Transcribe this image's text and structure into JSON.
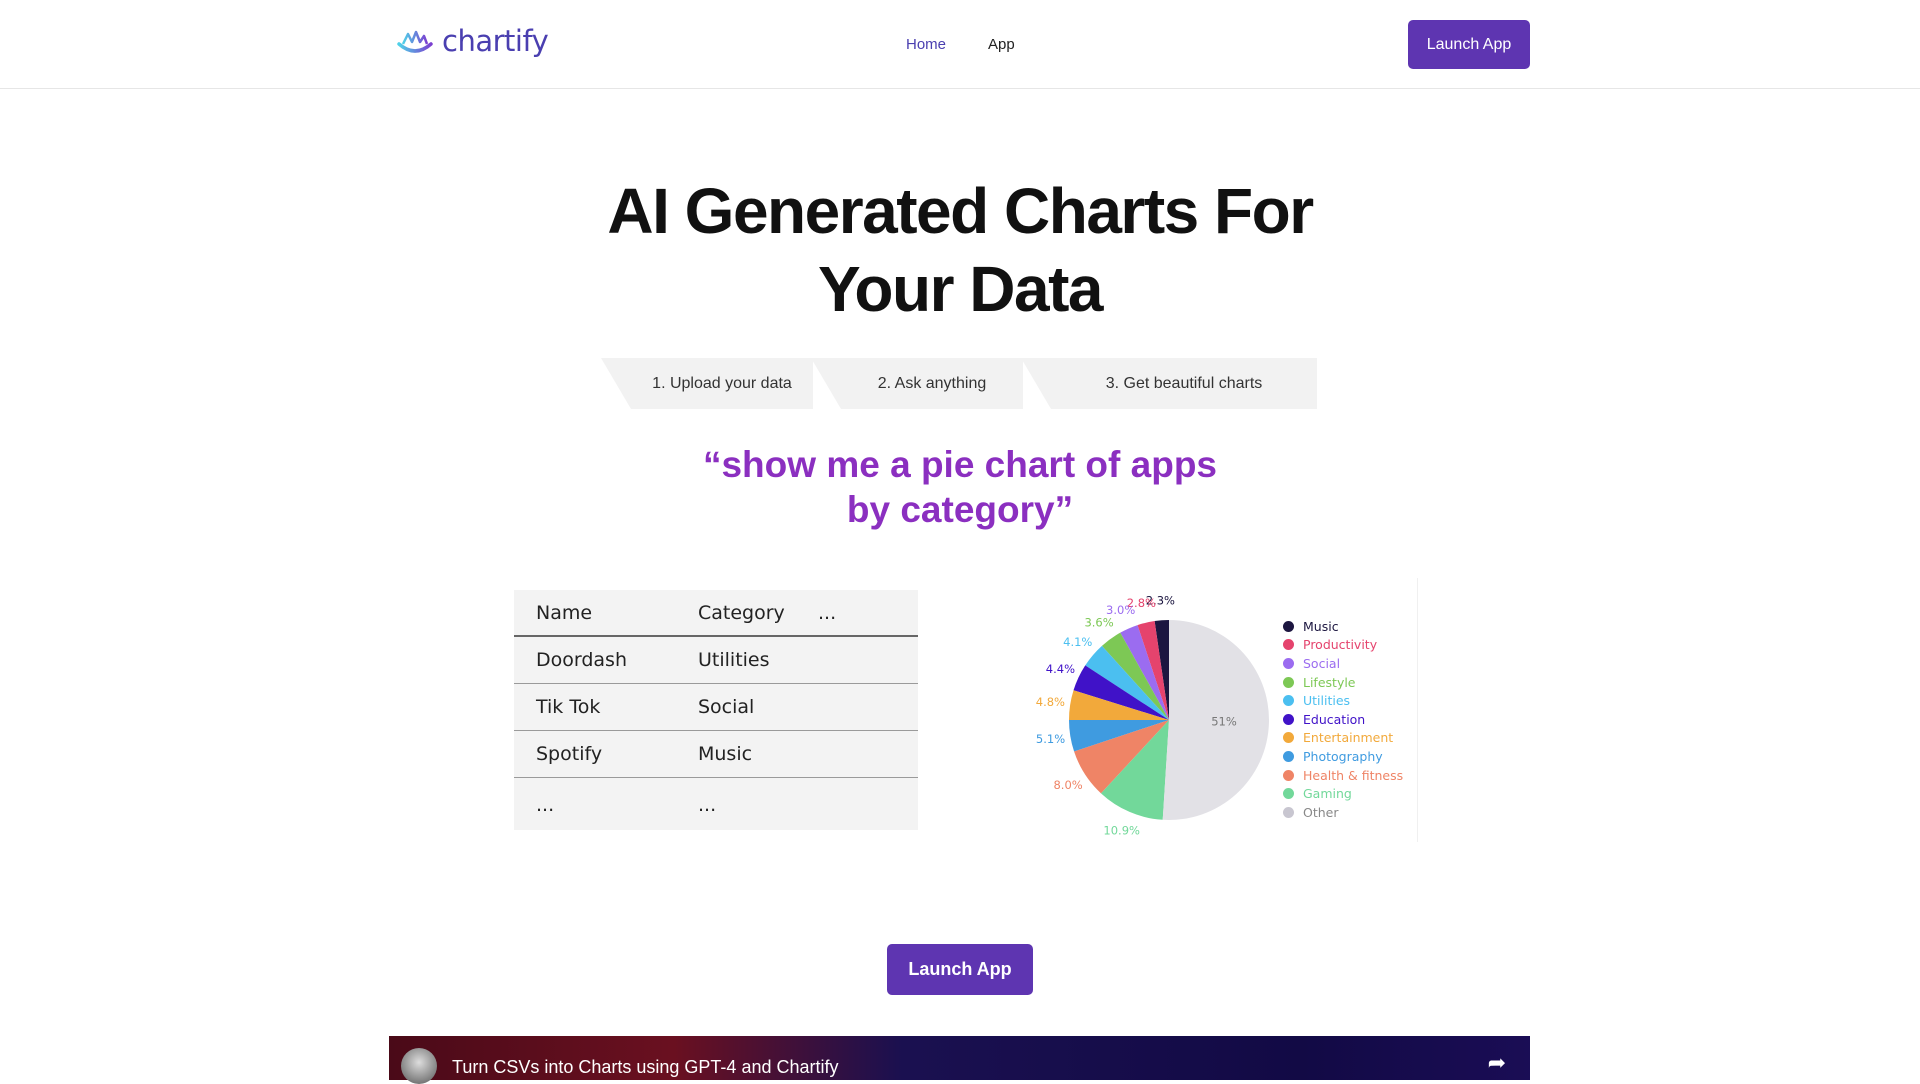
{
  "header": {
    "brand": "chartify",
    "nav": [
      "Home",
      "App"
    ],
    "launch_label": "Launch App",
    "accent": "#5e35b1"
  },
  "hero": {
    "title_line1": "AI Generated Charts For",
    "title_line2": "Your Data",
    "steps": [
      "1. Upload your data",
      "2. Ask anything",
      "3. Get beautiful charts"
    ],
    "quote_line1": "“show me a pie chart of apps",
    "quote_line2": "by category”"
  },
  "table": {
    "headers": [
      "Name",
      "Category",
      "..."
    ],
    "rows": [
      [
        "Doordash",
        "Utilities"
      ],
      [
        "Tik Tok",
        "Social"
      ],
      [
        "Spotify",
        "Music"
      ],
      [
        "...",
        "..."
      ]
    ]
  },
  "chart_data": {
    "type": "pie",
    "start": "top",
    "direction": "counterclockwise-from-top",
    "slices": [
      {
        "name": "Music",
        "value": 2.3,
        "label": "2.3%",
        "color": "#1c1640"
      },
      {
        "name": "Productivity",
        "value": 2.8,
        "label": "2.8%",
        "color": "#e5436d"
      },
      {
        "name": "Social",
        "value": 3.0,
        "label": "3.0%",
        "color": "#9b6cf0"
      },
      {
        "name": "Lifestyle",
        "value": 3.6,
        "label": "3.6%",
        "color": "#7dc855"
      },
      {
        "name": "Utilities",
        "value": 4.1,
        "label": "4.1%",
        "color": "#4bbff0"
      },
      {
        "name": "Education",
        "value": 4.4,
        "label": "4.4%",
        "color": "#4012c8"
      },
      {
        "name": "Entertainment",
        "value": 4.8,
        "label": "4.8%",
        "color": "#f2a93b"
      },
      {
        "name": "Photography",
        "value": 5.1,
        "label": "5.1%",
        "color": "#3f9be0"
      },
      {
        "name": "Health & fitness",
        "value": 8.0,
        "label": "8.0%",
        "color": "#ef8466"
      },
      {
        "name": "Gaming",
        "value": 10.9,
        "label": "10.9%",
        "color": "#72d89a"
      },
      {
        "name": "Other",
        "value": 51,
        "label": "51%",
        "color": "#e2e1e6"
      }
    ],
    "legend": "right"
  },
  "cta": {
    "label": "Launch App"
  },
  "video": {
    "title": "Turn CSVs into Charts using GPT-4 and Chartify"
  }
}
